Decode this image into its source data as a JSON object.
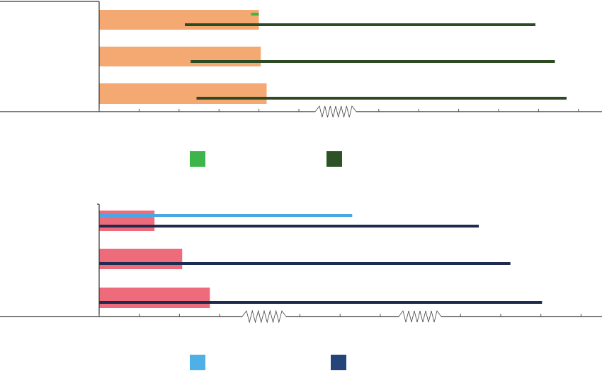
{
  "chart_data": [
    {
      "type": "bar",
      "categories": [
        "",
        "",
        ""
      ],
      "xlim": [
        0,
        12
      ],
      "grid": false,
      "axis_break_between_ticks": [
        5,
        6
      ],
      "bars": {
        "color": "#F4A872",
        "values": [
          4.1,
          4.15,
          4.3
        ]
      },
      "series": [
        {
          "color": "#3DB54A",
          "spans": [
            [
              3.9,
              4.1
            ],
            null,
            null
          ]
        },
        {
          "color": "#2E4A22",
          "spans": [
            [
              2.2,
              11.2
            ],
            [
              2.35,
              11.7
            ],
            [
              2.5,
              12.0
            ]
          ]
        }
      ],
      "legend": {
        "position": "bottom",
        "items": [
          {
            "label": "",
            "color": "#3DB54A"
          },
          {
            "label": "",
            "color": "#2E5226"
          }
        ]
      }
    },
    {
      "type": "bar",
      "categories": [
        "",
        "",
        ""
      ],
      "xlim": [
        0,
        12
      ],
      "grid": false,
      "axis_breaks_between_ticks": [
        [
          3.5,
          4.5
        ],
        [
          7.5,
          8.5
        ]
      ],
      "bars": {
        "color": "#EE6B7C",
        "values": [
          1.4,
          2.1,
          2.8
        ]
      },
      "series": [
        {
          "color": "#4AA7E3",
          "spans": [
            [
              0,
              6.4
            ],
            null,
            null
          ]
        },
        {
          "color": "#1E2A4E",
          "spans": [
            [
              0,
              9.6
            ],
            [
              0,
              10.4
            ],
            [
              0,
              11.2
            ]
          ]
        }
      ],
      "legend": {
        "position": "bottom",
        "items": [
          {
            "label": "",
            "color": "#4FB0E8"
          },
          {
            "label": "",
            "color": "#25457A"
          }
        ]
      }
    }
  ]
}
